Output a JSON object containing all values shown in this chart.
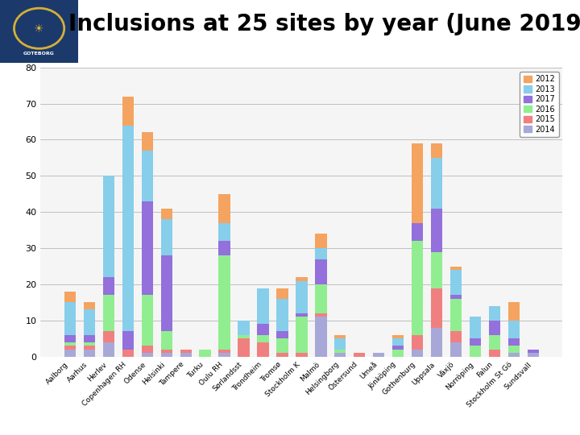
{
  "title": "Inclusions at 25 sites by year (June 2019",
  "title_fontsize": 20,
  "ylim": [
    0,
    80
  ],
  "yticks": [
    0,
    10,
    20,
    30,
    40,
    50,
    60,
    70,
    80
  ],
  "bar_width": 0.6,
  "sites": [
    "Aalborg",
    "Aarhus",
    "Herlev",
    "Copenhagen RH",
    "Odense",
    "Helsinki",
    "Tampere",
    "Turku",
    "Oulu RH",
    "Sørlandsst",
    "Trondheim",
    "Tromsø",
    "Stockholm K",
    "Malmö",
    "Helsingborg",
    "Östersund",
    "Umeå",
    "Jönköping",
    "Gothenburg",
    "Uppsala",
    "Växjö",
    "Norröping",
    "Falun",
    "Stockholm St Gö",
    "Sundsvall"
  ],
  "data": {
    "2012": [
      3,
      2,
      0,
      8,
      5,
      3,
      0,
      0,
      8,
      0,
      0,
      3,
      1,
      4,
      1,
      0,
      0,
      1,
      22,
      4,
      1,
      0,
      0,
      5,
      0
    ],
    "2013": [
      9,
      7,
      28,
      57,
      14,
      10,
      0,
      0,
      5,
      4,
      10,
      9,
      9,
      3,
      3,
      0,
      0,
      2,
      0,
      14,
      7,
      6,
      4,
      5,
      0
    ],
    "2017": [
      2,
      2,
      5,
      5,
      26,
      21,
      0,
      0,
      4,
      0,
      3,
      2,
      1,
      7,
      0,
      0,
      0,
      1,
      5,
      12,
      1,
      2,
      4,
      2,
      1
    ],
    "2016": [
      1,
      1,
      10,
      0,
      14,
      5,
      0,
      2,
      26,
      1,
      2,
      4,
      10,
      8,
      1,
      0,
      0,
      2,
      26,
      10,
      9,
      3,
      4,
      2,
      0
    ],
    "2015": [
      1,
      1,
      3,
      2,
      2,
      1,
      1,
      0,
      1,
      5,
      4,
      1,
      1,
      1,
      0,
      1,
      0,
      0,
      4,
      11,
      3,
      0,
      2,
      0,
      0
    ],
    "2014": [
      2,
      2,
      4,
      0,
      1,
      1,
      1,
      0,
      1,
      0,
      0,
      0,
      0,
      11,
      1,
      0,
      1,
      0,
      2,
      8,
      4,
      0,
      0,
      1,
      1
    ]
  },
  "colors": {
    "2012": "#F4A460",
    "2013": "#87CEEB",
    "2017": "#9370DB",
    "2016": "#90EE90",
    "2015": "#F08080",
    "2014": "#A8A8D8"
  },
  "header_bg": "#1B3A6B",
  "background_color": "#F5F5F5",
  "plot_bg": "#F5F5F5",
  "grid_color": "#AAAAAA"
}
